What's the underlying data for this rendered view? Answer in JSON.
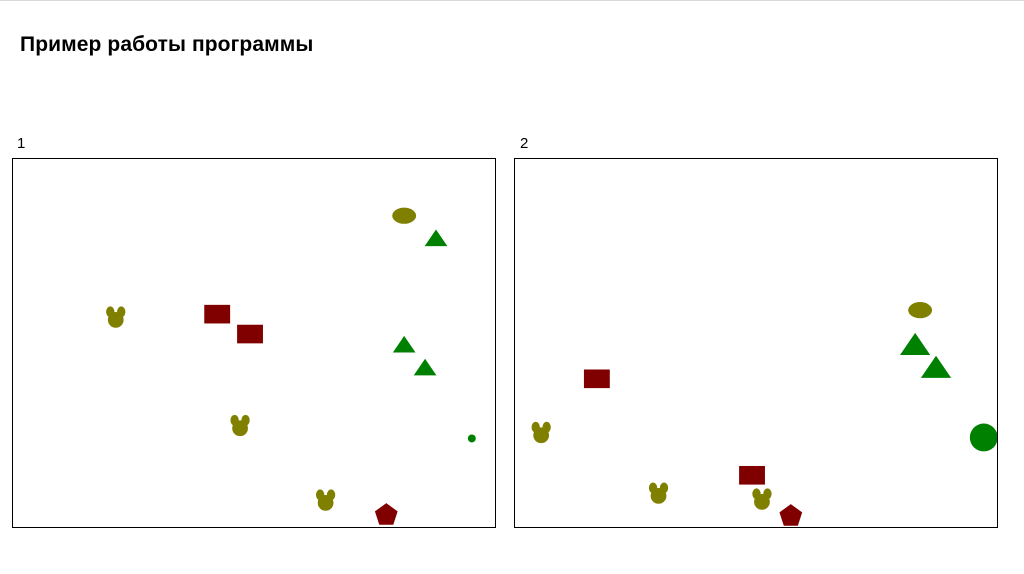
{
  "slide": {
    "title": "Пример работы программы"
  },
  "colors": {
    "olive": "#808000",
    "dark_red": "#800000",
    "green": "#008000"
  },
  "panels": [
    {
      "label": "1",
      "shapes": [
        {
          "kind": "ellipse",
          "color": "olive"
        },
        {
          "kind": "triangle",
          "color": "green"
        },
        {
          "kind": "mickey",
          "color": "olive"
        },
        {
          "kind": "rectangle",
          "color": "dark_red"
        },
        {
          "kind": "rectangle",
          "color": "dark_red"
        },
        {
          "kind": "triangle",
          "color": "green"
        },
        {
          "kind": "triangle",
          "color": "green"
        },
        {
          "kind": "mickey",
          "color": "olive"
        },
        {
          "kind": "circle",
          "color": "green"
        },
        {
          "kind": "mickey",
          "color": "olive"
        },
        {
          "kind": "pentagon",
          "color": "dark_red"
        }
      ]
    },
    {
      "label": "2",
      "shapes": [
        {
          "kind": "ellipse",
          "color": "olive"
        },
        {
          "kind": "triangle",
          "color": "green"
        },
        {
          "kind": "triangle",
          "color": "green"
        },
        {
          "kind": "rectangle",
          "color": "dark_red"
        },
        {
          "kind": "mickey",
          "color": "olive"
        },
        {
          "kind": "circle",
          "color": "green"
        },
        {
          "kind": "mickey",
          "color": "olive"
        },
        {
          "kind": "rectangle",
          "color": "dark_red"
        },
        {
          "kind": "mickey",
          "color": "olive"
        },
        {
          "kind": "pentagon",
          "color": "dark_red"
        }
      ]
    }
  ]
}
